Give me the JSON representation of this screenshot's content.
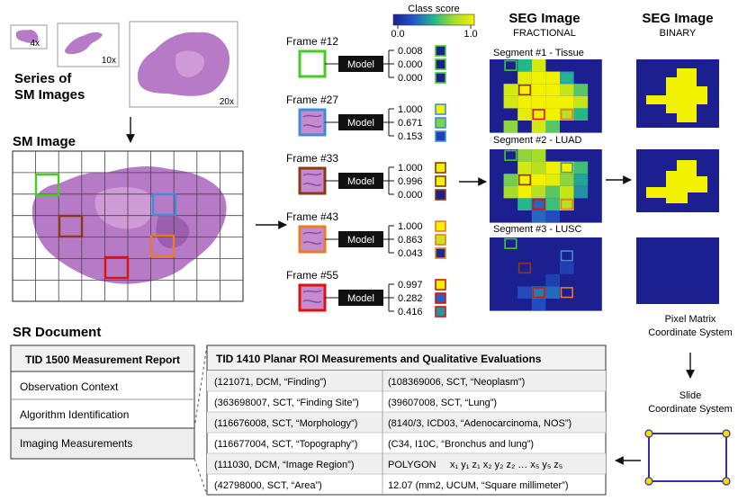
{
  "colors": {
    "frame12": "#44cc22",
    "frame27": "#3b8fd8",
    "frame33": "#8b3a14",
    "frame43": "#ee7a22",
    "frame55": "#dd1111",
    "heat_low": "#1b1f8f",
    "heat_high": "#f2f200",
    "tissue": "#b77ac6",
    "roi": "#f0e000",
    "roi_frame": "#3a2d9a"
  },
  "icons": {
    "model": "black-box",
    "arrow": "arrow-right-icon",
    "roi": "polygon-roi-icon"
  },
  "series": {
    "title_line1": "Series of",
    "title_line2": "SM Images",
    "mag_4x": "4x",
    "mag_10x": "10x",
    "mag_20x": "20x"
  },
  "sm_image": {
    "title": "SM Image"
  },
  "class_score": {
    "title": "Class score",
    "min": "0.0",
    "max": "1.0"
  },
  "model_label": "Model",
  "frames": [
    {
      "label": "Frame #12",
      "scores": [
        "0.008",
        "0.000",
        "0.000"
      ],
      "levels": [
        0.008,
        0.0,
        0.0
      ]
    },
    {
      "label": "Frame #27",
      "scores": [
        "1.000",
        "0.671",
        "0.153"
      ],
      "levels": [
        1.0,
        0.671,
        0.153
      ]
    },
    {
      "label": "Frame #33",
      "scores": [
        "1.000",
        "0.996",
        "0.000"
      ],
      "levels": [
        1.0,
        0.996,
        0.0
      ]
    },
    {
      "label": "Frame #43",
      "scores": [
        "1.000",
        "0.863",
        "0.043"
      ],
      "levels": [
        1.0,
        0.863,
        0.043
      ]
    },
    {
      "label": "Frame #55",
      "scores": [
        "0.997",
        "0.282",
        "0.416"
      ],
      "levels": [
        0.997,
        0.282,
        0.416
      ]
    }
  ],
  "seg_fractional": {
    "title": "SEG Image",
    "subtitle": "FRACTIONAL",
    "segments": [
      "Segment #1 - Tissue",
      "Segment #2 - LUAD",
      "Segment #3 - LUSC"
    ]
  },
  "seg_binary": {
    "title": "SEG Image",
    "subtitle": "BINARY"
  },
  "coords": {
    "pixel_line1": "Pixel Matrix",
    "pixel_line2": "Coordinate System",
    "slide_line1": "Slide",
    "slide_line2": "Coordinate System"
  },
  "sr": {
    "title": "SR Document",
    "tid1500": {
      "header": "TID 1500 Measurement Report",
      "items": [
        "Observation Context",
        "Algorithm Identification",
        "Imaging Measurements"
      ]
    },
    "tid1410": {
      "header": "TID 1410 Planar ROI Measurements and Qualitative Evaluations",
      "rows": [
        {
          "concept": "(121071, DCM, “Finding”)",
          "value": "(108369006, SCT, “Neoplasm”)"
        },
        {
          "concept": "(363698007, SCT, “Finding Site”)",
          "value": "(39607008, SCT, “Lung”)"
        },
        {
          "concept": "(116676008, SCT, “Morphology”)",
          "value": "(8140/3, ICD03, “Adenocarcinoma, NOS”)"
        },
        {
          "concept": "(116677004, SCT, “Topography”)",
          "value": "(C34, I10C, “Bronchus and lung”)"
        },
        {
          "concept": "(111030, DCM, “Image Region”)",
          "value": "POLYGON"
        },
        {
          "concept": "(42798000, SCT, “Area”)",
          "value": "12.07 (mm2, UCUM, “Square millimeter”)"
        }
      ],
      "polygon_coords": "x₁ y₁ z₁  x₂ y₂ z₂  …  x₅ y₅ z₅"
    }
  }
}
